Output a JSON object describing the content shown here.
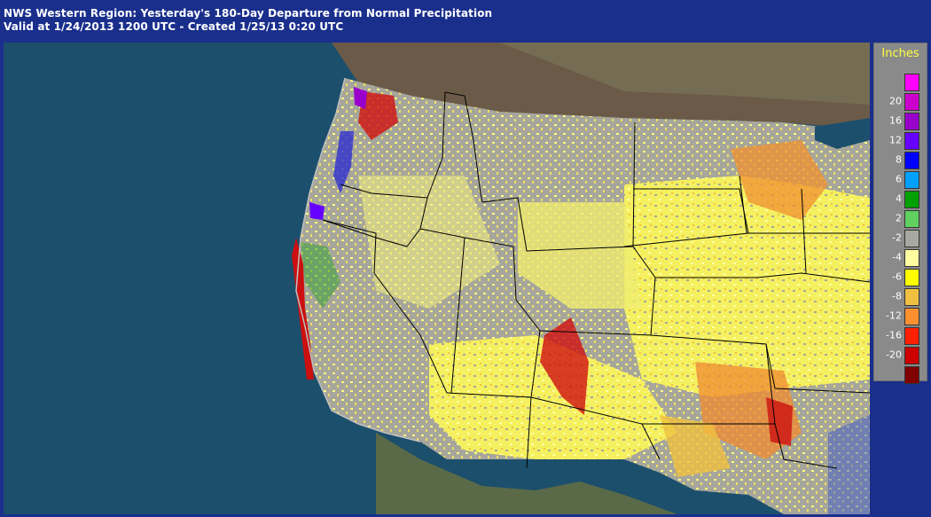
{
  "header": {
    "title": "NWS Western Region: Yesterday's 180-Day Departure from Normal Precipitation",
    "subtitle": "Valid at 1/24/2013 1200 UTC - Created 1/25/13 0:20 UTC"
  },
  "map": {
    "ocean_color": "#1c4f6c",
    "terrain_color": "#6b5a48",
    "land_base_color": "#9a9a90"
  },
  "legend": {
    "title": "Inches",
    "bins": [
      {
        "label": "",
        "color": "#ff00ff"
      },
      {
        "label": "20",
        "color": "#cc00cc"
      },
      {
        "label": "16",
        "color": "#9900cc"
      },
      {
        "label": "12",
        "color": "#6600ff"
      },
      {
        "label": "8",
        "color": "#0000ff"
      },
      {
        "label": "6",
        "color": "#00a0ff"
      },
      {
        "label": "4",
        "color": "#00a000"
      },
      {
        "label": "2",
        "color": "#60d060"
      },
      {
        "label": "-2",
        "color": "#a8a8a0"
      },
      {
        "label": "-4",
        "color": "#ffffa0"
      },
      {
        "label": "-6",
        "color": "#ffff00"
      },
      {
        "label": "-8",
        "color": "#f0c040"
      },
      {
        "label": "-12",
        "color": "#ff9030"
      },
      {
        "label": "-16",
        "color": "#ff2000"
      },
      {
        "label": "-20",
        "color": "#cc0000"
      },
      {
        "label": "",
        "color": "#800000"
      }
    ]
  }
}
